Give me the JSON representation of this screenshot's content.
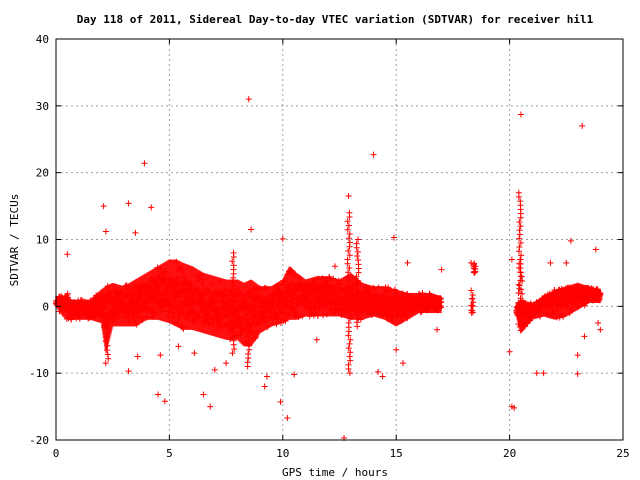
{
  "chart_data": {
    "type": "scatter",
    "title": "Day 118 of 2011, Sidereal Day-to-day VTEC variation (SDTVAR) for receiver hil1",
    "xlabel": "GPS time / hours",
    "ylabel": "SDTVAR / TECUs",
    "xlim": [
      0,
      25
    ],
    "ylim": [
      -20,
      40
    ],
    "xticks": [
      0,
      5,
      10,
      15,
      20,
      25
    ],
    "yticks": [
      -20,
      -10,
      0,
      10,
      20,
      30,
      40
    ],
    "xtick_labels": [
      "0",
      "5",
      "10",
      "15",
      "20",
      "25"
    ],
    "ytick_labels": [
      "-20",
      "-10",
      "0",
      "10",
      "20",
      "30",
      "40"
    ],
    "grid": true,
    "marker": "plus",
    "color": "#ff0000",
    "band_points": [
      [
        0.0,
        0.0,
        1.5,
        0.5
      ],
      [
        0.3,
        -1.5,
        1.5,
        0.5
      ],
      [
        0.5,
        -2.0,
        2.0,
        0.5
      ],
      [
        0.6,
        -2.0,
        1.0,
        -0.5
      ],
      [
        1.0,
        -2.0,
        1.0,
        -0.5
      ],
      [
        1.5,
        -2.0,
        1.0,
        -0.5
      ],
      [
        2.0,
        -2.5,
        2.5,
        0.0
      ],
      [
        2.2,
        -7.0,
        3.0,
        -1.0
      ],
      [
        2.5,
        -3.0,
        3.5,
        0.5
      ],
      [
        3.0,
        -3.0,
        3.0,
        0.5
      ],
      [
        3.5,
        -3.0,
        4.0,
        1.0
      ],
      [
        4.0,
        -2.0,
        5.0,
        1.5
      ],
      [
        4.5,
        -2.0,
        6.0,
        2.0
      ],
      [
        5.0,
        -2.5,
        7.0,
        2.0
      ],
      [
        5.3,
        -3.0,
        7.0,
        1.5
      ],
      [
        5.6,
        -3.5,
        6.5,
        1.0
      ],
      [
        6.0,
        -3.5,
        6.0,
        0.5
      ],
      [
        6.5,
        -4.0,
        5.0,
        0.0
      ],
      [
        7.0,
        -4.5,
        4.5,
        -0.5
      ],
      [
        7.5,
        -5.0,
        4.0,
        -0.5
      ],
      [
        8.0,
        -5.0,
        4.0,
        -0.5
      ],
      [
        8.3,
        -6.0,
        3.5,
        -1.0
      ],
      [
        8.6,
        -6.0,
        4.0,
        -0.5
      ],
      [
        9.0,
        -4.0,
        3.0,
        -0.5
      ],
      [
        9.5,
        -3.0,
        3.0,
        0.0
      ],
      [
        10.0,
        -2.5,
        4.0,
        0.5
      ],
      [
        10.3,
        -2.0,
        6.0,
        1.0
      ],
      [
        10.6,
        -2.0,
        5.0,
        1.5
      ],
      [
        11.0,
        -1.5,
        4.0,
        1.5
      ],
      [
        11.5,
        -1.5,
        4.5,
        1.5
      ],
      [
        12.0,
        -1.5,
        4.5,
        1.5
      ],
      [
        12.5,
        -1.5,
        4.0,
        1.0
      ],
      [
        13.0,
        -2.0,
        5.0,
        1.0
      ],
      [
        13.5,
        -2.0,
        3.5,
        0.5
      ],
      [
        14.0,
        -1.5,
        3.0,
        0.5
      ],
      [
        14.5,
        -2.0,
        3.0,
        0.0
      ],
      [
        15.0,
        -3.0,
        2.5,
        0.0
      ],
      [
        15.5,
        -2.0,
        2.0,
        0.0
      ],
      [
        16.0,
        -1.0,
        2.0,
        0.5
      ],
      [
        16.5,
        -1.0,
        2.0,
        0.5
      ],
      [
        17.0,
        -1.0,
        1.5,
        0.5
      ]
    ],
    "band_points_late": [
      [
        20.3,
        -1.5,
        0.5,
        -0.5
      ],
      [
        20.5,
        -4.0,
        1.0,
        -1.0
      ],
      [
        21.0,
        -2.0,
        0.5,
        -0.5
      ],
      [
        21.5,
        -1.5,
        1.5,
        0.5
      ],
      [
        22.0,
        -2.0,
        2.5,
        1.0
      ],
      [
        22.5,
        -1.5,
        3.0,
        1.5
      ],
      [
        23.0,
        -0.5,
        3.5,
        2.0
      ],
      [
        23.5,
        0.5,
        3.0,
        2.0
      ],
      [
        24.0,
        0.5,
        2.5,
        1.5
      ]
    ],
    "clusters": [
      [
        18.3,
        18.4,
        -1.0,
        2.5
      ],
      [
        18.4,
        18.5,
        5.0,
        6.5
      ]
    ],
    "spikes": [
      [
        12.9,
        0.0,
        14.0
      ],
      [
        12.95,
        -10.0,
        0.0
      ],
      [
        20.45,
        2.0,
        17.0
      ],
      [
        20.5,
        -2.0,
        7.0
      ],
      [
        2.25,
        -8.5,
        -2.0
      ],
      [
        7.8,
        -7.0,
        8.0
      ],
      [
        8.5,
        -9.0,
        -4.0
      ],
      [
        13.3,
        -3.0,
        10.0
      ]
    ],
    "outliers": [
      [
        8.5,
        31.0
      ],
      [
        20.5,
        28.7
      ],
      [
        23.2,
        27.0
      ],
      [
        14.0,
        22.7
      ],
      [
        3.9,
        21.4
      ],
      [
        12.9,
        16.5
      ],
      [
        2.1,
        15.0
      ],
      [
        3.2,
        15.4
      ],
      [
        4.2,
        14.8
      ],
      [
        3.5,
        11.0
      ],
      [
        2.2,
        11.2
      ],
      [
        8.6,
        11.5
      ],
      [
        14.9,
        10.3
      ],
      [
        10.0,
        10.1
      ],
      [
        22.7,
        9.8
      ],
      [
        0.5,
        7.8
      ],
      [
        17.0,
        5.5
      ],
      [
        23.8,
        8.5
      ],
      [
        22.5,
        6.5
      ],
      [
        20.1,
        7.0
      ],
      [
        21.8,
        6.5
      ],
      [
        18.3,
        6.5
      ],
      [
        15.5,
        6.5
      ],
      [
        12.3,
        6.0
      ],
      [
        3.2,
        -9.7
      ],
      [
        3.6,
        -7.5
      ],
      [
        4.6,
        -7.3
      ],
      [
        4.5,
        -13.2
      ],
      [
        4.8,
        -14.2
      ],
      [
        6.5,
        -13.2
      ],
      [
        6.8,
        -15.0
      ],
      [
        7.0,
        -9.5
      ],
      [
        7.5,
        -8.5
      ],
      [
        9.2,
        -12.0
      ],
      [
        10.5,
        -10.2
      ],
      [
        10.2,
        -16.7
      ],
      [
        9.9,
        -14.3
      ],
      [
        12.7,
        -19.7
      ],
      [
        14.2,
        -9.8
      ],
      [
        14.4,
        -10.5
      ],
      [
        15.3,
        -8.5
      ],
      [
        15.0,
        -6.5
      ],
      [
        20.1,
        -15.0
      ],
      [
        20.2,
        -15.2
      ],
      [
        21.2,
        -10.0
      ],
      [
        21.5,
        -10.0
      ],
      [
        23.0,
        -10.1
      ],
      [
        23.0,
        -7.3
      ],
      [
        23.3,
        -4.5
      ],
      [
        23.9,
        -2.5
      ],
      [
        24.0,
        -3.5
      ],
      [
        20.0,
        -6.8
      ],
      [
        11.5,
        -5.0
      ],
      [
        16.8,
        -3.5
      ],
      [
        6.1,
        -7.0
      ],
      [
        5.4,
        -6.0
      ],
      [
        9.3,
        -10.5
      ]
    ]
  }
}
